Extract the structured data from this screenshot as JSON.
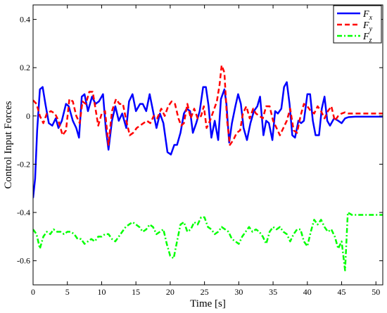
{
  "chart_data": {
    "type": "line",
    "xlabel": "Time [s]",
    "ylabel": "Control Input Forces",
    "xlim": [
      0,
      51
    ],
    "ylim": [
      -0.7,
      0.46
    ],
    "x_ticks": [
      0,
      5,
      10,
      15,
      20,
      25,
      30,
      35,
      40,
      45,
      50
    ],
    "x_tick_labels": [
      "0",
      "5",
      "10",
      "15",
      "20",
      "25",
      "30",
      "35",
      "40",
      "45",
      "50"
    ],
    "y_ticks": [
      -0.6,
      -0.4,
      -0.2,
      0,
      0.2,
      0.4
    ],
    "y_tick_labels": [
      "-0.6",
      "-0.4",
      "-0.2",
      "0",
      "0.2",
      "0.4"
    ],
    "grid": false,
    "legend_position": "top-right",
    "series": [
      {
        "name": "F_x",
        "color": "#0000ff",
        "style": "solid",
        "points": [
          [
            0,
            -0.34
          ],
          [
            0.3,
            -0.26
          ],
          [
            0.6,
            -0.06
          ],
          [
            1.0,
            0.11
          ],
          [
            1.4,
            0.12
          ],
          [
            1.8,
            0.05
          ],
          [
            2.3,
            -0.03
          ],
          [
            2.8,
            -0.04
          ],
          [
            3.3,
            -0.01
          ],
          [
            3.7,
            -0.05
          ],
          [
            4.2,
            -0.02
          ],
          [
            4.8,
            0.05
          ],
          [
            5.2,
            0.04
          ],
          [
            5.8,
            -0.02
          ],
          [
            6.3,
            -0.05
          ],
          [
            6.7,
            -0.09
          ],
          [
            7.1,
            0.08
          ],
          [
            7.5,
            0.09
          ],
          [
            8.0,
            0.02
          ],
          [
            8.6,
            0.08
          ],
          [
            9.1,
            0.05
          ],
          [
            9.6,
            0.06
          ],
          [
            10.2,
            0.09
          ],
          [
            10.6,
            -0.05
          ],
          [
            11.0,
            -0.14
          ],
          [
            11.5,
            -0.02
          ],
          [
            12.0,
            0.04
          ],
          [
            12.5,
            -0.02
          ],
          [
            13.0,
            0.01
          ],
          [
            13.6,
            -0.05
          ],
          [
            14.0,
            0.06
          ],
          [
            14.5,
            0.09
          ],
          [
            15.0,
            0.02
          ],
          [
            15.6,
            0.05
          ],
          [
            16.0,
            0.05
          ],
          [
            16.5,
            0.02
          ],
          [
            17.0,
            0.09
          ],
          [
            17.5,
            0.02
          ],
          [
            18.0,
            -0.05
          ],
          [
            18.5,
            0.01
          ],
          [
            19.0,
            -0.03
          ],
          [
            19.6,
            -0.15
          ],
          [
            20.1,
            -0.16
          ],
          [
            20.6,
            -0.12
          ],
          [
            21.0,
            -0.12
          ],
          [
            21.5,
            -0.07
          ],
          [
            22.0,
            0.01
          ],
          [
            22.4,
            0.03
          ],
          [
            22.9,
            0.02
          ],
          [
            23.3,
            -0.07
          ],
          [
            23.8,
            -0.03
          ],
          [
            24.3,
            0.02
          ],
          [
            24.8,
            0.12
          ],
          [
            25.2,
            0.12
          ],
          [
            25.6,
            0.04
          ],
          [
            26.0,
            -0.09
          ],
          [
            26.5,
            -0.02
          ],
          [
            27.0,
            -0.1
          ],
          [
            27.4,
            0.07
          ],
          [
            27.9,
            0.11
          ],
          [
            28.2,
            0.05
          ],
          [
            28.6,
            -0.11
          ],
          [
            29.0,
            -0.03
          ],
          [
            29.5,
            0.04
          ],
          [
            29.9,
            0.09
          ],
          [
            30.3,
            0.05
          ],
          [
            30.7,
            -0.05
          ],
          [
            31.2,
            -0.1
          ],
          [
            31.7,
            -0.03
          ],
          [
            32.2,
            0.02
          ],
          [
            32.7,
            0.04
          ],
          [
            33.1,
            0.08
          ],
          [
            33.6,
            -0.08
          ],
          [
            34.0,
            -0.02
          ],
          [
            34.4,
            -0.03
          ],
          [
            34.9,
            -0.1
          ],
          [
            35.3,
            0.02
          ],
          [
            35.7,
            0.01
          ],
          [
            36.2,
            0.03
          ],
          [
            36.6,
            0.12
          ],
          [
            37.0,
            0.14
          ],
          [
            37.4,
            0.05
          ],
          [
            37.8,
            -0.08
          ],
          [
            38.2,
            -0.09
          ],
          [
            38.7,
            -0.02
          ],
          [
            39.1,
            -0.03
          ],
          [
            39.5,
            -0.02
          ],
          [
            40.0,
            0.09
          ],
          [
            40.4,
            0.09
          ],
          [
            40.8,
            -0.02
          ],
          [
            41.2,
            -0.08
          ],
          [
            41.7,
            -0.08
          ],
          [
            42.1,
            0.03
          ],
          [
            42.5,
            0.08
          ],
          [
            42.9,
            -0.02
          ],
          [
            43.3,
            -0.04
          ],
          [
            43.9,
            -0.01
          ],
          [
            44.5,
            -0.02
          ],
          [
            45.0,
            -0.03
          ],
          [
            45.5,
            -0.01
          ],
          [
            46.0,
            -0.005
          ],
          [
            47.0,
            -0.003
          ],
          [
            48.0,
            -0.003
          ],
          [
            51.0,
            -0.003
          ]
        ]
      },
      {
        "name": "F_y",
        "color": "#ff0000",
        "style": "dashed",
        "points": [
          [
            0,
            0.065
          ],
          [
            0.5,
            0.05
          ],
          [
            1.0,
            0.0
          ],
          [
            1.5,
            -0.03
          ],
          [
            2.0,
            0.01
          ],
          [
            2.6,
            0.02
          ],
          [
            3.2,
            0.01
          ],
          [
            3.7,
            -0.02
          ],
          [
            4.3,
            -0.08
          ],
          [
            4.8,
            -0.06
          ],
          [
            5.3,
            0.07
          ],
          [
            5.8,
            0.06
          ],
          [
            6.3,
            0.0
          ],
          [
            6.8,
            -0.03
          ],
          [
            7.2,
            0.06
          ],
          [
            7.7,
            0.05
          ],
          [
            8.2,
            0.1
          ],
          [
            8.7,
            0.1
          ],
          [
            9.1,
            0.03
          ],
          [
            9.5,
            -0.04
          ],
          [
            10.0,
            0.01
          ],
          [
            10.5,
            0.02
          ],
          [
            11.0,
            -0.12
          ],
          [
            11.5,
            0.02
          ],
          [
            12.1,
            0.07
          ],
          [
            12.6,
            0.05
          ],
          [
            13.1,
            0.05
          ],
          [
            13.6,
            -0.02
          ],
          [
            14.1,
            -0.08
          ],
          [
            14.6,
            -0.07
          ],
          [
            15.1,
            -0.05
          ],
          [
            15.6,
            -0.04
          ],
          [
            16.1,
            -0.03
          ],
          [
            16.6,
            -0.02
          ],
          [
            17.1,
            -0.03
          ],
          [
            17.6,
            0.0
          ],
          [
            18.1,
            -0.01
          ],
          [
            18.7,
            0.03
          ],
          [
            19.2,
            0.0
          ],
          [
            19.7,
            0.04
          ],
          [
            20.2,
            0.06
          ],
          [
            20.7,
            0.05
          ],
          [
            21.2,
            -0.01
          ],
          [
            21.6,
            -0.04
          ],
          [
            22.0,
            -0.03
          ],
          [
            22.5,
            0.05
          ],
          [
            23.0,
            -0.01
          ],
          [
            23.5,
            0.03
          ],
          [
            24.0,
            -0.01
          ],
          [
            24.5,
            0.0
          ],
          [
            24.9,
            0.04
          ],
          [
            25.3,
            -0.05
          ],
          [
            25.8,
            -0.02
          ],
          [
            26.3,
            0.02
          ],
          [
            26.8,
            0.06
          ],
          [
            27.2,
            0.13
          ],
          [
            27.5,
            0.21
          ],
          [
            27.9,
            0.18
          ],
          [
            28.3,
            -0.02
          ],
          [
            28.7,
            -0.12
          ],
          [
            29.2,
            -0.1
          ],
          [
            29.7,
            -0.07
          ],
          [
            30.2,
            -0.06
          ],
          [
            30.6,
            0.01
          ],
          [
            31.1,
            0.04
          ],
          [
            31.6,
            -0.01
          ],
          [
            32.1,
            0.03
          ],
          [
            32.5,
            0.01
          ],
          [
            33.0,
            0.0
          ],
          [
            33.5,
            -0.01
          ],
          [
            34.0,
            0.04
          ],
          [
            34.5,
            0.04
          ],
          [
            35.0,
            -0.02
          ],
          [
            35.5,
            -0.05
          ],
          [
            36.0,
            -0.08
          ],
          [
            36.5,
            -0.05
          ],
          [
            37.0,
            -0.02
          ],
          [
            37.5,
            0.03
          ],
          [
            38.0,
            -0.06
          ],
          [
            38.5,
            -0.07
          ],
          [
            39.0,
            0.0
          ],
          [
            39.5,
            0.05
          ],
          [
            40.0,
            0.04
          ],
          [
            40.5,
            0.02
          ],
          [
            41.0,
            0.01
          ],
          [
            41.5,
            0.04
          ],
          [
            42.0,
            0.02
          ],
          [
            42.5,
            -0.01
          ],
          [
            43.0,
            0.02
          ],
          [
            43.5,
            0.04
          ],
          [
            44.0,
            -0.02
          ],
          [
            44.5,
            0.0
          ],
          [
            45.0,
            0.01
          ],
          [
            45.5,
            0.015
          ],
          [
            46.0,
            0.01
          ],
          [
            47.0,
            0.01
          ],
          [
            51.0,
            0.01
          ]
        ]
      },
      {
        "name": "F_z",
        "color": "#00ff00",
        "style": "dashdot",
        "points": [
          [
            0,
            -0.47
          ],
          [
            0.5,
            -0.49
          ],
          [
            1.0,
            -0.55
          ],
          [
            1.5,
            -0.5
          ],
          [
            2.0,
            -0.48
          ],
          [
            2.5,
            -0.49
          ],
          [
            3.0,
            -0.47
          ],
          [
            3.5,
            -0.48
          ],
          [
            4.0,
            -0.48
          ],
          [
            4.5,
            -0.49
          ],
          [
            5.0,
            -0.48
          ],
          [
            5.5,
            -0.48
          ],
          [
            6.0,
            -0.49
          ],
          [
            6.5,
            -0.51
          ],
          [
            7.0,
            -0.51
          ],
          [
            7.5,
            -0.53
          ],
          [
            8.0,
            -0.52
          ],
          [
            8.5,
            -0.51
          ],
          [
            9.0,
            -0.52
          ],
          [
            9.5,
            -0.5
          ],
          [
            10.0,
            -0.5
          ],
          [
            10.5,
            -0.49
          ],
          [
            11.0,
            -0.49
          ],
          [
            11.5,
            -0.51
          ],
          [
            12.0,
            -0.52
          ],
          [
            12.5,
            -0.5
          ],
          [
            13.0,
            -0.48
          ],
          [
            13.5,
            -0.46
          ],
          [
            14.0,
            -0.45
          ],
          [
            14.5,
            -0.44
          ],
          [
            15.0,
            -0.45
          ],
          [
            15.5,
            -0.46
          ],
          [
            16.0,
            -0.48
          ],
          [
            16.5,
            -0.47
          ],
          [
            17.0,
            -0.45
          ],
          [
            17.5,
            -0.46
          ],
          [
            18.0,
            -0.49
          ],
          [
            18.5,
            -0.48
          ],
          [
            19.0,
            -0.47
          ],
          [
            19.5,
            -0.53
          ],
          [
            20.0,
            -0.58
          ],
          [
            20.5,
            -0.59
          ],
          [
            21.0,
            -0.52
          ],
          [
            21.5,
            -0.45
          ],
          [
            22.0,
            -0.44
          ],
          [
            22.5,
            -0.48
          ],
          [
            23.0,
            -0.47
          ],
          [
            23.5,
            -0.44
          ],
          [
            24.0,
            -0.45
          ],
          [
            24.5,
            -0.42
          ],
          [
            25.0,
            -0.42
          ],
          [
            25.5,
            -0.46
          ],
          [
            26.0,
            -0.47
          ],
          [
            26.5,
            -0.49
          ],
          [
            27.0,
            -0.48
          ],
          [
            27.5,
            -0.46
          ],
          [
            28.0,
            -0.47
          ],
          [
            28.5,
            -0.48
          ],
          [
            29.0,
            -0.51
          ],
          [
            29.5,
            -0.52
          ],
          [
            30.0,
            -0.53
          ],
          [
            30.5,
            -0.5
          ],
          [
            31.0,
            -0.48
          ],
          [
            31.5,
            -0.46
          ],
          [
            32.0,
            -0.48
          ],
          [
            32.5,
            -0.47
          ],
          [
            33.0,
            -0.48
          ],
          [
            33.5,
            -0.5
          ],
          [
            34.0,
            -0.53
          ],
          [
            34.5,
            -0.48
          ],
          [
            35.0,
            -0.46
          ],
          [
            35.5,
            -0.47
          ],
          [
            36.0,
            -0.46
          ],
          [
            36.5,
            -0.48
          ],
          [
            37.0,
            -0.49
          ],
          [
            37.5,
            -0.52
          ],
          [
            38.0,
            -0.49
          ],
          [
            38.5,
            -0.47
          ],
          [
            39.0,
            -0.47
          ],
          [
            39.5,
            -0.52
          ],
          [
            40.0,
            -0.54
          ],
          [
            40.5,
            -0.48
          ],
          [
            41.0,
            -0.43
          ],
          [
            41.5,
            -0.45
          ],
          [
            42.0,
            -0.43
          ],
          [
            42.5,
            -0.46
          ],
          [
            43.0,
            -0.48
          ],
          [
            43.5,
            -0.47
          ],
          [
            44.0,
            -0.5
          ],
          [
            44.5,
            -0.55
          ],
          [
            45.0,
            -0.52
          ],
          [
            45.5,
            -0.64
          ],
          [
            45.9,
            -0.4
          ],
          [
            46.5,
            -0.41
          ],
          [
            47.0,
            -0.41
          ],
          [
            48.0,
            -0.41
          ],
          [
            51.0,
            -0.41
          ]
        ]
      }
    ]
  }
}
